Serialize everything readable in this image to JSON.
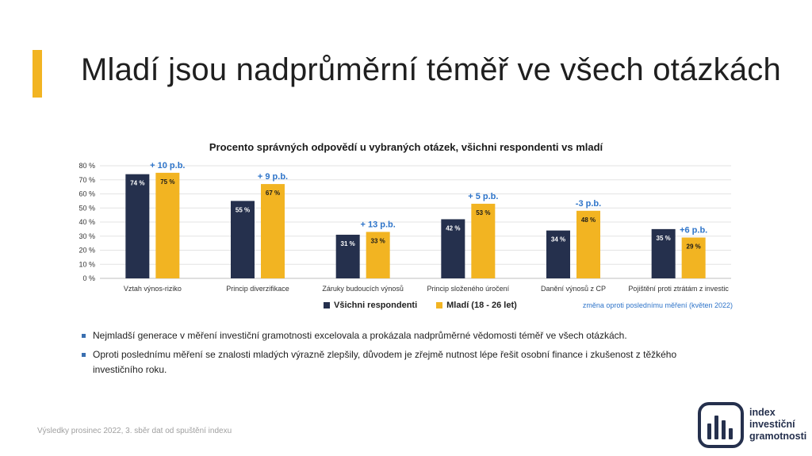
{
  "slide": {
    "title": "Mladí jsou nadprůměrní téměř ve všech otázkách",
    "footer": "Výsledky prosinec 2022, 3. sběr dat od spuštění indexu",
    "logo_lines": [
      "index",
      "investiční",
      "gramotnosti"
    ],
    "bullets": [
      "Nejmladší generace v měření investiční gramotnosti excelovala a prokázala nadprůměrné vědomosti téměř ve všech otázkách.",
      "Oproti poslednímu měření se znalosti mladých výrazně zlepšily, důvodem je zřejmě nutnost lépe řešit osobní finance i zkušenost z těžkého investičního roku."
    ],
    "note": "změna oproti poslednímu měření (květen 2022)"
  },
  "colors": {
    "accent": "#f2b422",
    "navy": "#25304d",
    "change_label": "#2e74c9"
  },
  "chart_data": {
    "type": "bar",
    "title": "Procento správných odpovědí u vybraných otázek, všichni respondenti vs mladí",
    "categories": [
      "Vztah výnos-riziko",
      "Princip diverzifikace",
      "Záruky budoucích výnosů",
      "Princip složeného úročení",
      "Danění výnosů z CP",
      "Pojištění proti ztrátám z investic"
    ],
    "series": [
      {
        "name": "Všichni respondenti",
        "values": [
          74,
          55,
          31,
          42,
          34,
          35
        ],
        "labels": [
          "74 %",
          "55 %",
          "31 %",
          "42 %",
          "34 %",
          "35 %"
        ],
        "color": "#25304d"
      },
      {
        "name": "Mladí (18 - 26 let)",
        "values": [
          75,
          67,
          33,
          53,
          48,
          29
        ],
        "labels": [
          "75 %",
          "67 %",
          "33 %",
          "53 %",
          "48 %",
          "29 %"
        ],
        "color": "#f2b422"
      }
    ],
    "change_labels": [
      "+ 10 p.b.",
      "+ 9 p.b.",
      "+ 13 p.b.",
      "+ 5 p.b.",
      "-3 p.b.",
      "+6 p.b."
    ],
    "yticks": [
      "0 %",
      "10 %",
      "20 %",
      "30 %",
      "40 %",
      "50 %",
      "60 %",
      "70 %",
      "80 %"
    ],
    "ylim": [
      0,
      80
    ],
    "grid": true,
    "legend_position": "bottom"
  }
}
